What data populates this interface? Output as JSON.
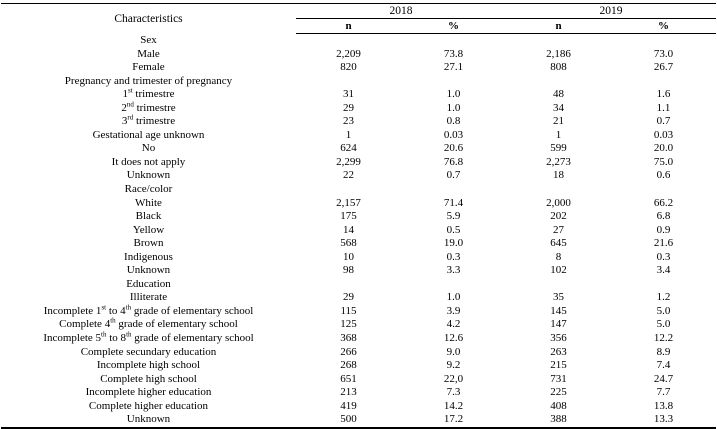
{
  "page": {
    "background_color": "#ffffff",
    "text_color": "#000000",
    "rule_color": "#000000"
  },
  "table": {
    "header": {
      "characteristics": "Characteristics",
      "year_2018": "2018",
      "year_2019": "2019",
      "n_label": "n",
      "percent_label": "%"
    },
    "rows": [
      {
        "section": true,
        "label": "Sex"
      },
      {
        "label": "Male",
        "n_2018": "2,209",
        "pct_2018": "73.8",
        "n_2019": "2,186",
        "pct_2019": "73.0"
      },
      {
        "label": "Female",
        "n_2018": "820",
        "pct_2018": "27.1",
        "n_2019": "808",
        "pct_2019": "26.7"
      },
      {
        "section": true,
        "label": "Pregnancy and trimester of pregnancy"
      },
      {
        "label": [
          "1",
          {
            "sup": "st"
          },
          " trimestre"
        ],
        "n_2018": "31",
        "pct_2018": "1.0",
        "n_2019": "48",
        "pct_2019": "1.6"
      },
      {
        "label": [
          "2",
          {
            "sup": "nd"
          },
          " trimestre"
        ],
        "n_2018": "29",
        "pct_2018": "1.0",
        "n_2019": "34",
        "pct_2019": "1.1"
      },
      {
        "label": [
          "3",
          {
            "sup": "rd"
          },
          " trimestre"
        ],
        "n_2018": "23",
        "pct_2018": "0.8",
        "n_2019": "21",
        "pct_2019": "0.7"
      },
      {
        "label": "Gestational age unknown",
        "n_2018": "1",
        "pct_2018": "0.03",
        "n_2019": "1",
        "pct_2019": "0.03"
      },
      {
        "label": "No",
        "n_2018": "624",
        "pct_2018": "20.6",
        "n_2019": "599",
        "pct_2019": "20.0"
      },
      {
        "label": "It does not apply",
        "n_2018": "2,299",
        "pct_2018": "76.8",
        "n_2019": "2,273",
        "pct_2019": "75.0"
      },
      {
        "label": "Unknown",
        "n_2018": "22",
        "pct_2018": "0.7",
        "n_2019": "18",
        "pct_2019": "0.6"
      },
      {
        "section": true,
        "label": "Race/color"
      },
      {
        "label": "White",
        "n_2018": "2,157",
        "pct_2018": "71.4",
        "n_2019": "2,000",
        "pct_2019": "66.2"
      },
      {
        "label": "Black",
        "n_2018": "175",
        "pct_2018": "5.9",
        "n_2019": "202",
        "pct_2019": "6.8"
      },
      {
        "label": "Yellow",
        "n_2018": "14",
        "pct_2018": "0.5",
        "n_2019": "27",
        "pct_2019": "0.9"
      },
      {
        "label": "Brown",
        "n_2018": "568",
        "pct_2018": "19.0",
        "n_2019": "645",
        "pct_2019": "21.6"
      },
      {
        "label": "Indigenous",
        "n_2018": "10",
        "pct_2018": "0.3",
        "n_2019": "8",
        "pct_2019": "0.3"
      },
      {
        "label": "Unknown",
        "n_2018": "98",
        "pct_2018": "3.3",
        "n_2019": "102",
        "pct_2019": "3.4"
      },
      {
        "section": true,
        "label": "Education"
      },
      {
        "label": "Illiterate",
        "n_2018": "29",
        "pct_2018": "1.0",
        "n_2019": "35",
        "pct_2019": "1.2"
      },
      {
        "label": [
          "Incomplete 1",
          {
            "sup": "st"
          },
          " to 4",
          {
            "sup": "th"
          },
          " grade of elementary school"
        ],
        "n_2018": "115",
        "pct_2018": "3.9",
        "n_2019": "145",
        "pct_2019": "5.0"
      },
      {
        "label": [
          "Complete 4",
          {
            "sup": "th"
          },
          " grade of elementary school"
        ],
        "n_2018": "125",
        "pct_2018": "4.2",
        "n_2019": "147",
        "pct_2019": "5.0"
      },
      {
        "label": [
          "Incomplete 5",
          {
            "sup": "th"
          },
          " to 8",
          {
            "sup": "th"
          },
          " grade of elementary school"
        ],
        "n_2018": "368",
        "pct_2018": "12.6",
        "n_2019": "356",
        "pct_2019": "12.2"
      },
      {
        "label": "Complete secundary education",
        "n_2018": "266",
        "pct_2018": "9.0",
        "n_2019": "263",
        "pct_2019": "8.9"
      },
      {
        "label": "Incomplete high school",
        "n_2018": "268",
        "pct_2018": "9.2",
        "n_2019": "215",
        "pct_2019": "7.4"
      },
      {
        "label": "Complete high school",
        "n_2018": "651",
        "pct_2018": "22,0",
        "n_2019": "731",
        "pct_2019": "24.7"
      },
      {
        "label": "Incomplete higher education",
        "n_2018": "213",
        "pct_2018": "7.3",
        "n_2019": "225",
        "pct_2019": "7.7"
      },
      {
        "label": "Complete higher education",
        "n_2018": "419",
        "pct_2018": "14.2",
        "n_2019": "408",
        "pct_2019": "13.8"
      },
      {
        "label": "Unknown",
        "n_2018": "500",
        "pct_2018": "17.2",
        "n_2019": "388",
        "pct_2019": "13.3"
      }
    ]
  }
}
